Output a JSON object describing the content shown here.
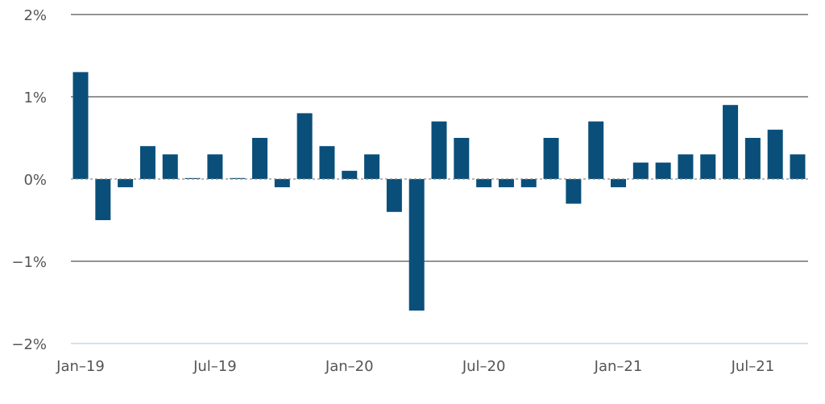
{
  "chart_data": {
    "type": "bar",
    "title": "",
    "xlabel": "",
    "ylabel": "",
    "ylim": [
      -2,
      2
    ],
    "y_ticks": [
      "2%",
      "1%",
      "0%",
      "−1%",
      "−2%"
    ],
    "x_tick_labels": [
      "Jan–19",
      "Jul–19",
      "Jan–20",
      "Jul–20",
      "Jan–21",
      "Jul–21"
    ],
    "x_tick_indices": [
      0,
      6,
      12,
      18,
      24,
      30
    ],
    "categories": [
      "Jan-19",
      "Feb-19",
      "Mar-19",
      "Apr-19",
      "May-19",
      "Jun-19",
      "Jul-19",
      "Aug-19",
      "Sep-19",
      "Oct-19",
      "Nov-19",
      "Dec-19",
      "Jan-20",
      "Feb-20",
      "Mar-20",
      "Apr-20",
      "May-20",
      "Jun-20",
      "Jul-20",
      "Aug-20",
      "Sep-20",
      "Oct-20",
      "Nov-20",
      "Dec-20",
      "Jan-21",
      "Feb-21",
      "Mar-21",
      "Apr-21",
      "May-21",
      "Jun-21",
      "Jul-21",
      "Aug-21",
      "Sep-21"
    ],
    "values": [
      1.3,
      -0.5,
      -0.1,
      0.4,
      0.3,
      0.0,
      0.3,
      0.0,
      0.5,
      -0.1,
      0.8,
      0.4,
      0.1,
      0.3,
      -0.4,
      -1.6,
      0.7,
      0.5,
      -0.1,
      -0.1,
      -0.1,
      0.5,
      -0.3,
      0.7,
      -0.1,
      0.2,
      0.2,
      0.3,
      0.3,
      0.9,
      0.5,
      0.6,
      0.3
    ],
    "bar_color": "#0a4f7a",
    "grid": true
  }
}
